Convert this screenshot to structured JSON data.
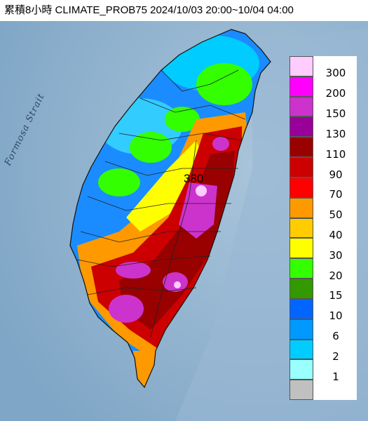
{
  "header": {
    "title": "累積8小時 CLIMATE_PROB75 2024/10/03 20:00~10/04 04:00"
  },
  "map": {
    "strait_label": "Formosa Strait",
    "max_value_label": "380",
    "colors": {
      "ocean": "#8fb3d1",
      "land": "#c8d3cf"
    }
  },
  "legend": {
    "levels": [
      {
        "label": "300",
        "color": "#ffccff"
      },
      {
        "label": "200",
        "color": "#ff00ff"
      },
      {
        "label": "150",
        "color": "#cc33cc"
      },
      {
        "label": "130",
        "color": "#990099"
      },
      {
        "label": "110",
        "color": "#990000"
      },
      {
        "label": "90",
        "color": "#cc0000"
      },
      {
        "label": "70",
        "color": "#ff0000"
      },
      {
        "label": "50",
        "color": "#ff9900"
      },
      {
        "label": "40",
        "color": "#ffcc00"
      },
      {
        "label": "30",
        "color": "#ffff00"
      },
      {
        "label": "20",
        "color": "#33ff00"
      },
      {
        "label": "15",
        "color": "#339900"
      },
      {
        "label": "10",
        "color": "#0066ff"
      },
      {
        "label": "6",
        "color": "#0099ff"
      },
      {
        "label": "2",
        "color": "#00ccff"
      },
      {
        "label": "1",
        "color": "#99ffff"
      },
      {
        "label": "",
        "color": "#c0c0c0"
      }
    ]
  }
}
